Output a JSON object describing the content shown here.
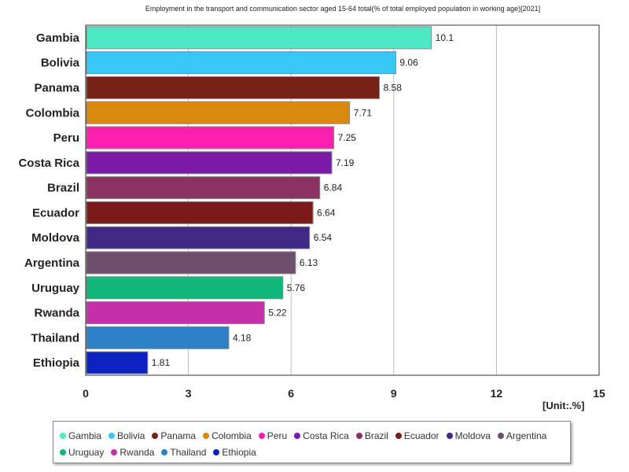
{
  "chart_data": {
    "type": "bar",
    "orientation": "horizontal",
    "title": "Employment in the transport and communication sector aged 15-64 total(% of total employed population in working age)[2021]",
    "categories": [
      "Gambia",
      "Bolivia",
      "Panama",
      "Colombia",
      "Peru",
      "Costa Rica",
      "Brazil",
      "Ecuador",
      "Moldova",
      "Argentina",
      "Uruguay",
      "Rwanda",
      "Thailand",
      "Ethiopia"
    ],
    "values": [
      10.1,
      9.06,
      8.58,
      7.71,
      7.25,
      7.19,
      6.84,
      6.64,
      6.54,
      6.13,
      5.76,
      5.22,
      4.18,
      1.81
    ],
    "value_labels": [
      "10.1",
      "9.06",
      "8.58",
      "7.71",
      "7.25",
      "7.19",
      "6.84",
      "6.64",
      "6.54",
      "6.13",
      "5.76",
      "5.22",
      "4.18",
      "1.81"
    ],
    "colors": [
      "#4de8c4",
      "#38c8f8",
      "#772218",
      "#d8890e",
      "#fc1fb0",
      "#7c1aa8",
      "#8b3262",
      "#7b1a18",
      "#412a86",
      "#6d4e6d",
      "#12b57a",
      "#c530a8",
      "#2c80c6",
      "#0b21c0"
    ],
    "xlim": [
      0,
      15
    ],
    "xticks": [
      "0",
      "3",
      "6",
      "9",
      "12",
      "15"
    ],
    "unit_label": "[Unit:.%]",
    "grid": true,
    "legend_position": "bottom"
  }
}
